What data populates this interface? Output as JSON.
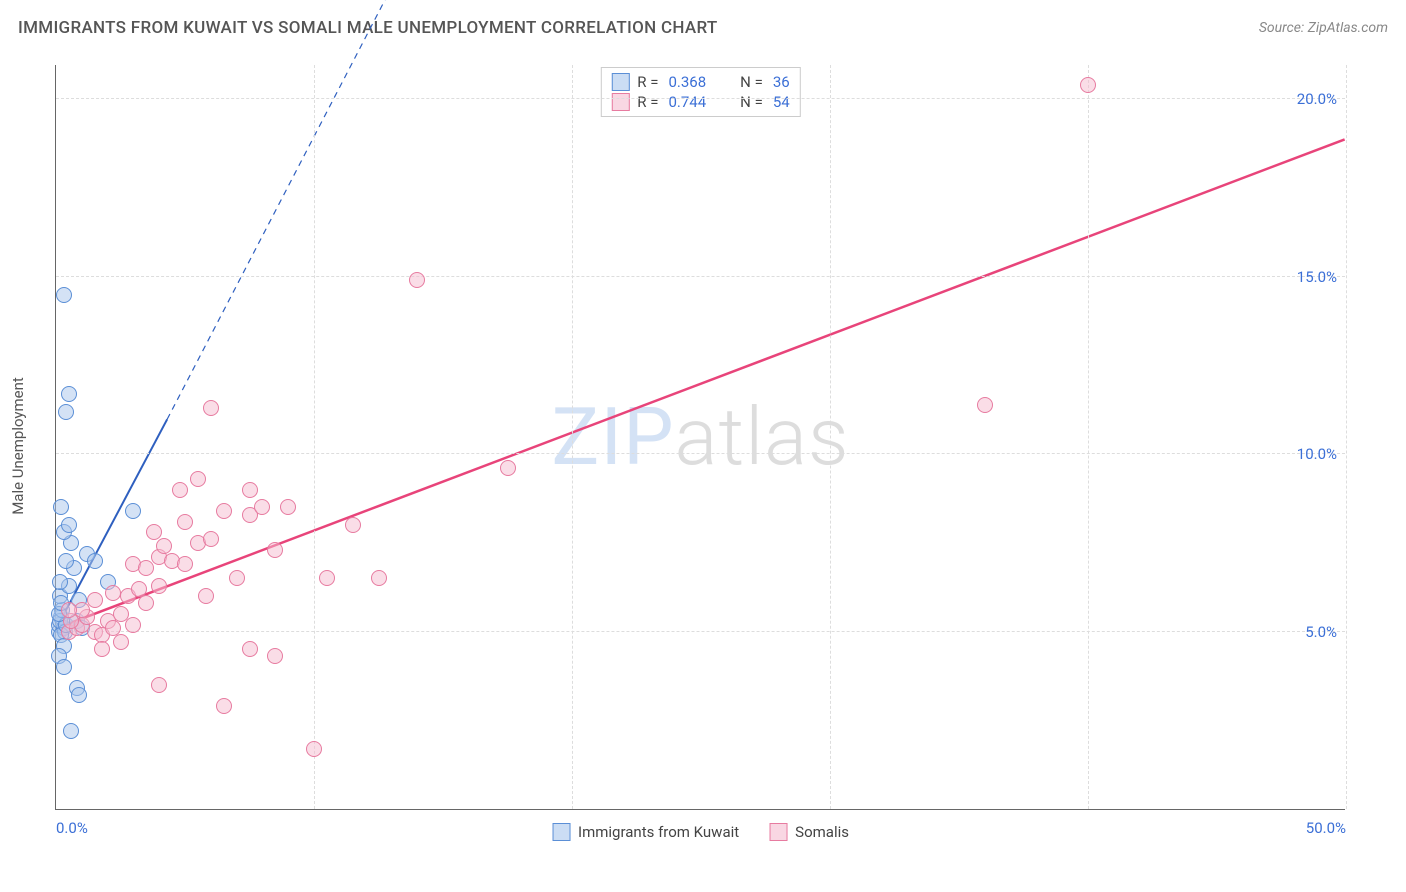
{
  "title": "IMMIGRANTS FROM KUWAIT VS SOMALI MALE UNEMPLOYMENT CORRELATION CHART",
  "source_prefix": "Source: ",
  "source_name": "ZipAtlas.com",
  "y_axis_label": "Male Unemployment",
  "watermark_a": "ZIP",
  "watermark_b": "atlas",
  "chart": {
    "type": "scatter",
    "background_color": "#ffffff",
    "grid_color": "#dddddd",
    "axis_color": "#666666",
    "tick_label_color": "#3b6fd6",
    "xlim": [
      0,
      50
    ],
    "ylim": [
      0,
      21
    ],
    "x_ticks": [
      0,
      10,
      20,
      30,
      40,
      50
    ],
    "x_tick_labels": {
      "0": "0.0%",
      "50": "50.0%"
    },
    "y_ticks": [
      5,
      10,
      15,
      20
    ],
    "y_tick_labels": {
      "5": "5.0%",
      "10": "10.0%",
      "15": "15.0%",
      "20": "20.0%"
    },
    "marker_radius": 8,
    "marker_stroke_width": 1.5,
    "marker_fill_opacity": 0.25,
    "series": [
      {
        "id": "kuwait",
        "label": "Immigrants from Kuwait",
        "color_stroke": "#5b8fd6",
        "color_fill": "#a9c6ec",
        "R": "0.368",
        "N": "36",
        "trend": {
          "x1": 0,
          "y1": 5.1,
          "x2": 4.3,
          "y2": 11.0,
          "dash_to_x": 14.3,
          "dash_to_y": 25,
          "stroke": "#2e5fbf",
          "width": 2
        },
        "points": [
          [
            0.1,
            5.0
          ],
          [
            0.1,
            5.2
          ],
          [
            0.2,
            5.4
          ],
          [
            0.3,
            5.1
          ],
          [
            0.15,
            5.3
          ],
          [
            0.25,
            5.6
          ],
          [
            0.35,
            5.0
          ],
          [
            0.2,
            4.9
          ],
          [
            0.3,
            4.6
          ],
          [
            0.4,
            5.2
          ],
          [
            0.1,
            5.5
          ],
          [
            0.15,
            6.0
          ],
          [
            0.5,
            6.3
          ],
          [
            0.7,
            6.8
          ],
          [
            0.4,
            7.0
          ],
          [
            0.6,
            7.5
          ],
          [
            0.3,
            7.8
          ],
          [
            0.5,
            8.0
          ],
          [
            1.2,
            7.2
          ],
          [
            1.5,
            7.0
          ],
          [
            2.0,
            6.4
          ],
          [
            0.8,
            5.3
          ],
          [
            1.0,
            5.1
          ],
          [
            0.1,
            4.3
          ],
          [
            0.3,
            4.0
          ],
          [
            0.8,
            3.4
          ],
          [
            0.9,
            3.2
          ],
          [
            0.6,
            2.2
          ],
          [
            0.2,
            8.5
          ],
          [
            0.4,
            11.2
          ],
          [
            0.5,
            11.7
          ],
          [
            0.3,
            14.5
          ],
          [
            0.2,
            5.8
          ],
          [
            0.9,
            5.9
          ],
          [
            0.15,
            6.4
          ],
          [
            3.0,
            8.4
          ]
        ]
      },
      {
        "id": "somali",
        "label": "Somalis",
        "color_stroke": "#e77ba0",
        "color_fill": "#f5bcd0",
        "R": "0.744",
        "N": "54",
        "trend": {
          "x1": 0,
          "y1": 5.1,
          "x2": 50,
          "y2": 18.9,
          "stroke": "#e8447a",
          "width": 2.5
        },
        "points": [
          [
            0.5,
            5.0
          ],
          [
            0.8,
            5.1
          ],
          [
            1.0,
            5.2
          ],
          [
            1.2,
            5.4
          ],
          [
            1.5,
            5.0
          ],
          [
            1.8,
            4.9
          ],
          [
            2.0,
            5.3
          ],
          [
            2.2,
            5.1
          ],
          [
            2.5,
            5.5
          ],
          [
            3.0,
            5.2
          ],
          [
            1.5,
            5.9
          ],
          [
            1.0,
            5.6
          ],
          [
            0.6,
            5.3
          ],
          [
            2.2,
            6.1
          ],
          [
            2.8,
            6.0
          ],
          [
            3.2,
            6.2
          ],
          [
            3.5,
            5.8
          ],
          [
            4.0,
            6.3
          ],
          [
            3.0,
            6.9
          ],
          [
            3.5,
            6.8
          ],
          [
            4.0,
            7.1
          ],
          [
            4.5,
            7.0
          ],
          [
            5.0,
            6.9
          ],
          [
            5.5,
            7.5
          ],
          [
            6.0,
            7.6
          ],
          [
            4.2,
            7.4
          ],
          [
            3.8,
            7.8
          ],
          [
            5.0,
            8.1
          ],
          [
            6.5,
            8.4
          ],
          [
            7.5,
            8.3
          ],
          [
            8.0,
            8.5
          ],
          [
            9.0,
            8.5
          ],
          [
            8.5,
            7.3
          ],
          [
            7.0,
            6.5
          ],
          [
            10.5,
            6.5
          ],
          [
            12.5,
            6.5
          ],
          [
            7.5,
            9.0
          ],
          [
            5.5,
            9.3
          ],
          [
            4.8,
            9.0
          ],
          [
            6.0,
            11.3
          ],
          [
            14.0,
            14.9
          ],
          [
            17.5,
            9.6
          ],
          [
            2.5,
            4.7
          ],
          [
            1.8,
            4.5
          ],
          [
            7.5,
            4.5
          ],
          [
            8.5,
            4.3
          ],
          [
            4.0,
            3.5
          ],
          [
            6.5,
            2.9
          ],
          [
            10.0,
            1.7
          ],
          [
            0.5,
            5.6
          ],
          [
            36.0,
            11.4
          ],
          [
            40.0,
            20.4
          ],
          [
            5.8,
            6.0
          ],
          [
            11.5,
            8.0
          ]
        ]
      }
    ]
  },
  "legend_top": {
    "r_label": "R =",
    "n_label": "N ="
  }
}
